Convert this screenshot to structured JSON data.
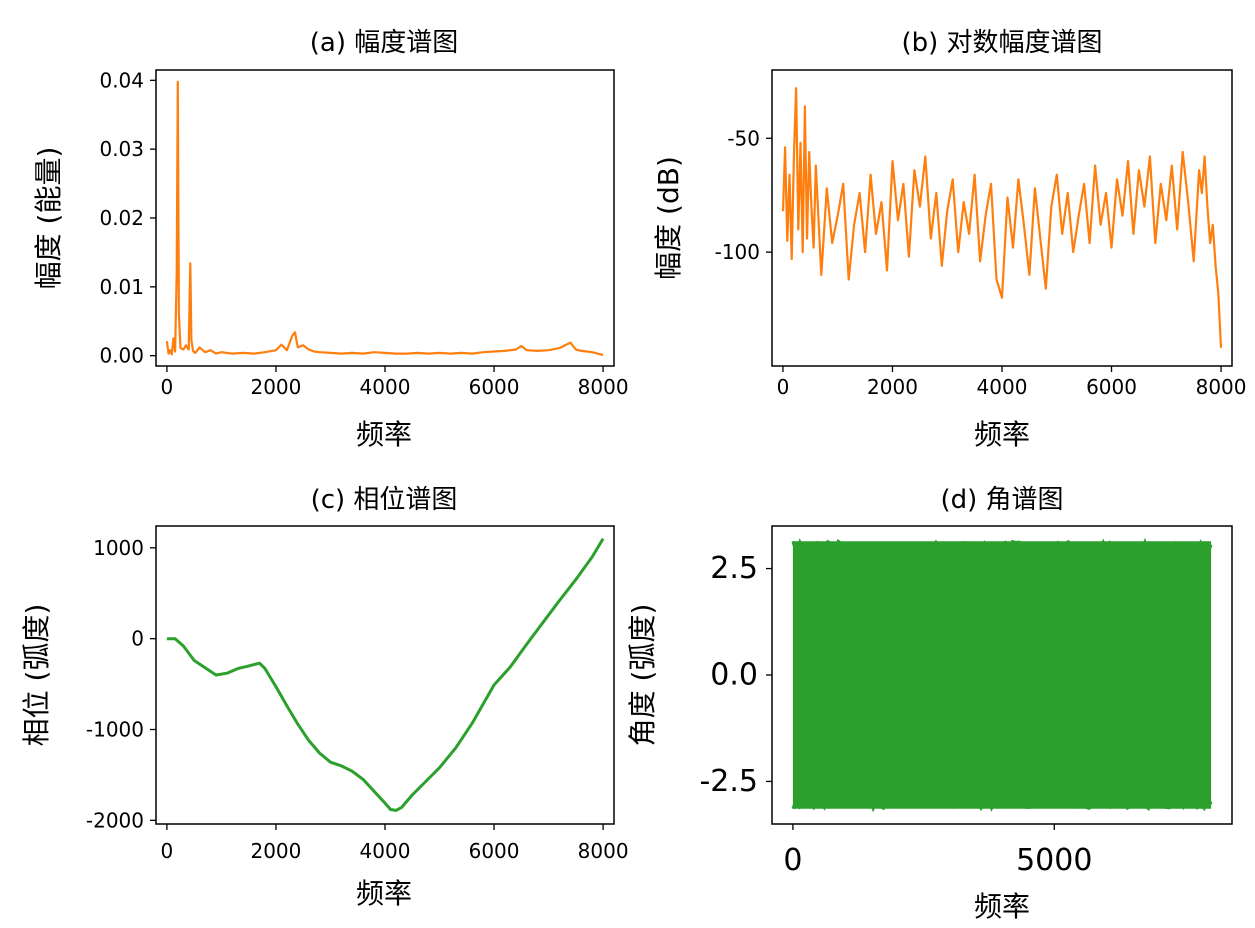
{
  "chart_data": [
    {
      "id": "a",
      "type": "line",
      "title": "(a) 幅度谱图",
      "xlabel": "频率",
      "ylabel": "幅度 (能量)",
      "xlim": [
        -200,
        8200
      ],
      "ylim": [
        -0.0015,
        0.0415
      ],
      "xticks": [
        "0",
        "2000",
        "4000",
        "6000",
        "8000"
      ],
      "yticks": [
        "0.00",
        "0.01",
        "0.02",
        "0.03",
        "0.04"
      ],
      "color": "#ff7f0e",
      "series": [
        {
          "x": [
            0,
            30,
            60,
            90,
            120,
            150,
            180,
            200,
            220,
            250,
            300,
            350,
            400,
            430,
            450,
            480,
            520,
            600,
            700,
            800,
            900,
            1000,
            1200,
            1400,
            1600,
            1800,
            2000,
            2100,
            2200,
            2300,
            2350,
            2400,
            2500,
            2600,
            2700,
            2800,
            3000,
            3200,
            3400,
            3600,
            3800,
            4000,
            4200,
            4400,
            4600,
            4800,
            5000,
            5200,
            5400,
            5600,
            5800,
            6000,
            6200,
            6400,
            6500,
            6600,
            6800,
            7000,
            7200,
            7400,
            7500,
            7600,
            7700,
            7800,
            7900,
            8000
          ],
          "y": [
            0.0021,
            0.0003,
            0.0008,
            0.0002,
            0.0025,
            0.0006,
            0.012,
            0.0398,
            0.006,
            0.0011,
            0.0009,
            0.0015,
            0.0009,
            0.0134,
            0.0022,
            0.0007,
            0.0004,
            0.0012,
            0.0005,
            0.0008,
            0.0003,
            0.0005,
            0.0003,
            0.0004,
            0.0003,
            0.0005,
            0.0008,
            0.0016,
            0.0008,
            0.0029,
            0.0034,
            0.0012,
            0.0015,
            0.0009,
            0.0006,
            0.0005,
            0.0004,
            0.0003,
            0.0004,
            0.0003,
            0.0005,
            0.0004,
            0.0003,
            0.0003,
            0.0004,
            0.0003,
            0.0004,
            0.0003,
            0.0004,
            0.0003,
            0.0005,
            0.0006,
            0.0007,
            0.0009,
            0.0014,
            0.0008,
            0.0007,
            0.0008,
            0.0011,
            0.0019,
            0.0009,
            0.0007,
            0.0006,
            0.0005,
            0.0003,
            0.0001
          ]
        }
      ]
    },
    {
      "id": "b",
      "type": "line",
      "title": "(b) 对数幅度谱图",
      "xlabel": "频率",
      "ylabel": "幅度 (dB)",
      "xlim": [
        -200,
        8200
      ],
      "ylim": [
        -150,
        -20
      ],
      "xticks": [
        "0",
        "2000",
        "4000",
        "6000",
        "8000"
      ],
      "yticks": [
        "-50",
        "-100"
      ],
      "color": "#ff7f0e",
      "series": [
        {
          "x": [
            0,
            40,
            80,
            120,
            160,
            200,
            240,
            280,
            320,
            360,
            400,
            440,
            480,
            520,
            560,
            600,
            700,
            800,
            900,
            1000,
            1100,
            1200,
            1300,
            1400,
            1500,
            1600,
            1700,
            1800,
            1900,
            2000,
            2100,
            2200,
            2300,
            2400,
            2500,
            2600,
            2700,
            2800,
            2900,
            3000,
            3100,
            3200,
            3300,
            3400,
            3500,
            3600,
            3700,
            3800,
            3900,
            4000,
            4100,
            4200,
            4300,
            4400,
            4500,
            4600,
            4700,
            4800,
            4900,
            5000,
            5100,
            5200,
            5300,
            5400,
            5500,
            5600,
            5700,
            5800,
            5900,
            6000,
            6100,
            6200,
            6300,
            6400,
            6500,
            6600,
            6700,
            6800,
            6900,
            7000,
            7100,
            7200,
            7300,
            7400,
            7500,
            7600,
            7650,
            7700,
            7750,
            7800,
            7850,
            7900,
            7950,
            8000
          ],
          "y": [
            -82,
            -54,
            -95,
            -66,
            -103,
            -58,
            -28,
            -90,
            -52,
            -100,
            -36,
            -94,
            -56,
            -80,
            -98,
            -62,
            -110,
            -72,
            -96,
            -84,
            -70,
            -112,
            -88,
            -74,
            -100,
            -66,
            -92,
            -78,
            -108,
            -60,
            -86,
            -70,
            -102,
            -64,
            -80,
            -58,
            -94,
            -74,
            -106,
            -82,
            -68,
            -100,
            -78,
            -92,
            -66,
            -104,
            -84,
            -70,
            -112,
            -120,
            -76,
            -98,
            -68,
            -88,
            -110,
            -72,
            -94,
            -116,
            -80,
            -66,
            -92,
            -74,
            -100,
            -84,
            -70,
            -96,
            -62,
            -88,
            -74,
            -98,
            -68,
            -84,
            -60,
            -92,
            -64,
            -80,
            -58,
            -96,
            -70,
            -86,
            -62,
            -90,
            -56,
            -78,
            -104,
            -64,
            -74,
            -58,
            -80,
            -96,
            -88,
            -106,
            -118,
            -142
          ]
        }
      ]
    },
    {
      "id": "c",
      "type": "line",
      "title": "(c) 相位谱图",
      "xlabel": "频率",
      "ylabel": "相位 (弧度)",
      "xlim": [
        -200,
        8200
      ],
      "ylim": [
        -2040,
        1240
      ],
      "xticks": [
        "0",
        "2000",
        "4000",
        "6000",
        "8000"
      ],
      "yticks": [
        "1000",
        "0",
        "-1000",
        "-2000"
      ],
      "color": "#2ca02c",
      "series": [
        {
          "x": [
            0,
            150,
            300,
            500,
            700,
            900,
            1100,
            1300,
            1500,
            1700,
            1800,
            2000,
            2200,
            2400,
            2600,
            2800,
            3000,
            3200,
            3400,
            3600,
            3800,
            4000,
            4100,
            4200,
            4300,
            4500,
            4700,
            5000,
            5300,
            5600,
            5800,
            6000,
            6300,
            6600,
            6900,
            7200,
            7500,
            7800,
            8000
          ],
          "y": [
            0,
            0,
            -80,
            -240,
            -320,
            -400,
            -380,
            -330,
            -300,
            -270,
            -330,
            -530,
            -740,
            -940,
            -1120,
            -1260,
            -1360,
            -1400,
            -1460,
            -1550,
            -1680,
            -1810,
            -1880,
            -1890,
            -1860,
            -1720,
            -1600,
            -1420,
            -1200,
            -930,
            -720,
            -510,
            -310,
            -60,
            180,
            420,
            650,
            900,
            1100
          ]
        }
      ]
    },
    {
      "id": "d",
      "type": "area",
      "title": "(d) 角谱图",
      "xlabel": "频率",
      "ylabel": "角度 (弧度)",
      "xlim": [
        -400,
        8400
      ],
      "ylim": [
        -3.5,
        3.5
      ],
      "xticks": [
        "0",
        "5000"
      ],
      "yticks": [
        "2.5",
        "0.0",
        "-2.5"
      ],
      "color": "#2ca02c",
      "series": [
        {
          "x": [
            0,
            8000
          ],
          "y_min": -3.14159,
          "y_max": 3.14159
        }
      ]
    }
  ]
}
